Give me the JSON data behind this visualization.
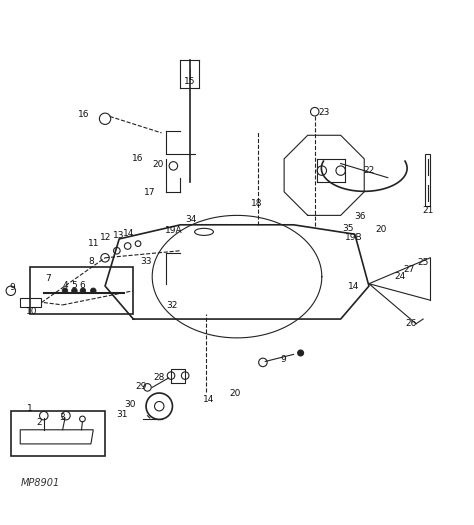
{
  "bg_color": "#ffffff",
  "fig_width": 4.74,
  "fig_height": 5.25,
  "dpi": 100,
  "watermark": "MP8901"
}
